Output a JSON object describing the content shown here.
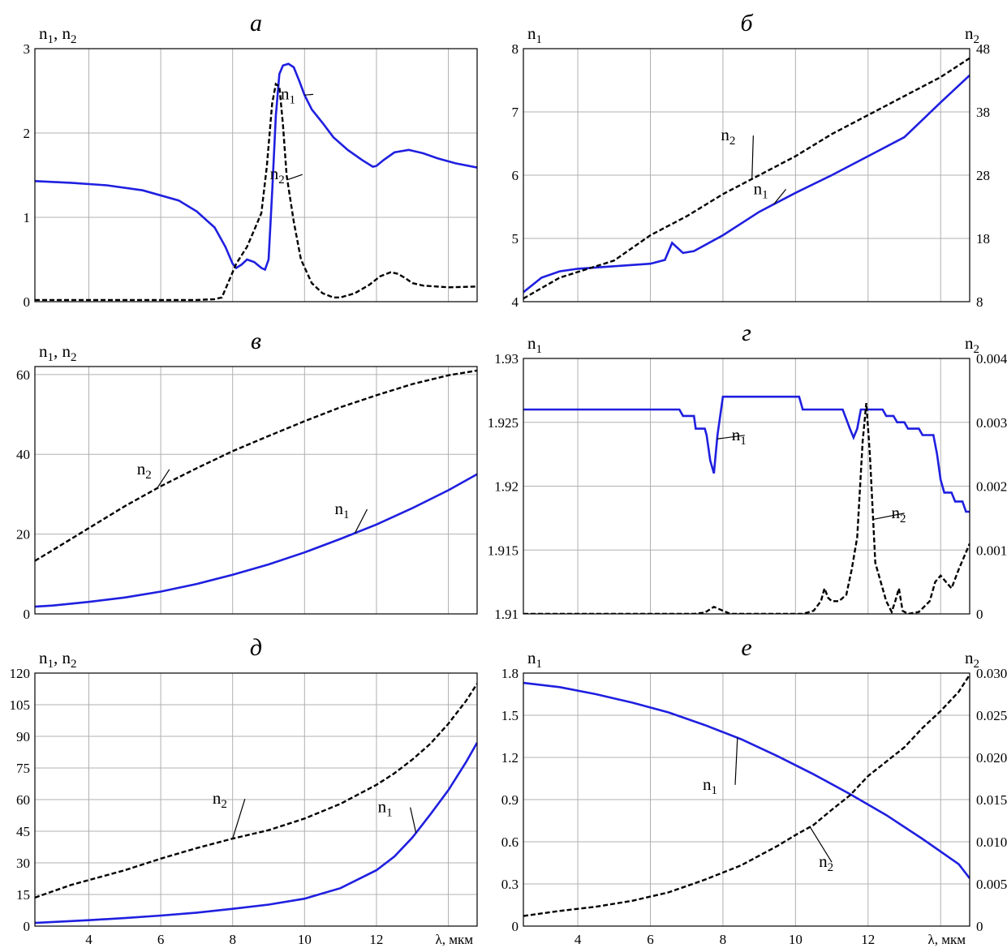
{
  "colors": {
    "n1": "#1f1fe0",
    "n2": "#000000",
    "grid": "#b0b0b0"
  },
  "chart_data": [
    {
      "type": "line",
      "title": "а",
      "ylabel": "n1, n2",
      "xlim": [
        2.5,
        14.8
      ],
      "xticks": [
        4,
        6,
        8,
        10,
        12
      ],
      "xtick_labels_shown": false,
      "ylim": [
        0,
        3
      ],
      "yticks": [
        0,
        1,
        2,
        3
      ],
      "grid": true,
      "series": [
        {
          "name": "n1",
          "axis": "left",
          "style": "solid",
          "x": [
            2.5,
            3.5,
            4.5,
            5.5,
            6.5,
            7.0,
            7.5,
            7.8,
            8.0,
            8.1,
            8.25,
            8.4,
            8.6,
            8.8,
            8.9,
            9.0,
            9.1,
            9.2,
            9.3,
            9.4,
            9.55,
            9.7,
            9.85,
            10.0,
            10.2,
            10.5,
            10.8,
            11.2,
            11.6,
            11.9,
            12.0,
            12.2,
            12.5,
            12.9,
            13.3,
            13.7,
            14.2,
            14.8
          ],
          "y": [
            1.43,
            1.41,
            1.38,
            1.32,
            1.2,
            1.07,
            0.88,
            0.65,
            0.45,
            0.4,
            0.44,
            0.5,
            0.47,
            0.4,
            0.38,
            0.5,
            1.3,
            2.2,
            2.7,
            2.8,
            2.82,
            2.78,
            2.62,
            2.45,
            2.28,
            2.12,
            1.95,
            1.8,
            1.68,
            1.6,
            1.61,
            1.68,
            1.77,
            1.8,
            1.76,
            1.7,
            1.64,
            1.59
          ]
        },
        {
          "name": "n2",
          "axis": "left",
          "style": "dashed",
          "x": [
            2.5,
            5.0,
            7.0,
            7.5,
            7.7,
            7.9,
            8.1,
            8.4,
            8.6,
            8.8,
            8.95,
            9.1,
            9.2,
            9.3,
            9.4,
            9.5,
            9.7,
            9.9,
            10.2,
            10.5,
            10.8,
            11.0,
            11.4,
            11.8,
            12.1,
            12.4,
            12.6,
            12.8,
            13.0,
            13.3,
            14.0,
            14.8
          ],
          "y": [
            0.02,
            0.02,
            0.02,
            0.03,
            0.05,
            0.25,
            0.45,
            0.65,
            0.85,
            1.05,
            1.6,
            2.35,
            2.58,
            2.55,
            2.1,
            1.5,
            0.95,
            0.5,
            0.22,
            0.1,
            0.05,
            0.05,
            0.1,
            0.2,
            0.3,
            0.35,
            0.33,
            0.28,
            0.22,
            0.19,
            0.17,
            0.18
          ]
        }
      ],
      "annotations": [
        {
          "text": "n1",
          "series": "n1",
          "at": [
            9.7,
            2.4
          ]
        },
        {
          "text": "n2",
          "series": "n2",
          "at": [
            9.4,
            1.45
          ]
        }
      ]
    },
    {
      "type": "line",
      "title": "б",
      "ylabel": "n1",
      "y2label": "n2",
      "xlim": [
        2.5,
        14.8
      ],
      "xticks": [
        4,
        6,
        8,
        10,
        12
      ],
      "xtick_labels_shown": false,
      "ylim": [
        4,
        8
      ],
      "yticks": [
        4,
        5,
        6,
        7,
        8
      ],
      "y2lim": [
        8,
        48
      ],
      "y2ticks": [
        8,
        18,
        28,
        38,
        48
      ],
      "grid": true,
      "series": [
        {
          "name": "n1",
          "axis": "left",
          "style": "solid",
          "x": [
            2.5,
            3.0,
            3.5,
            4.0,
            5.0,
            6.0,
            6.4,
            6.6,
            6.9,
            7.2,
            8.0,
            9.0,
            10.0,
            11.0,
            12.0,
            13.0,
            14.0,
            14.8
          ],
          "y": [
            4.15,
            4.38,
            4.48,
            4.52,
            4.56,
            4.6,
            4.66,
            4.93,
            4.77,
            4.8,
            5.05,
            5.42,
            5.72,
            6.0,
            6.3,
            6.6,
            7.15,
            7.58
          ]
        },
        {
          "name": "n2",
          "axis": "right",
          "style": "dashed",
          "x": [
            2.5,
            3.5,
            5.0,
            6.0,
            7.0,
            8.0,
            9.0,
            10.0,
            11.0,
            12.0,
            13.0,
            14.0,
            14.8
          ],
          "y": [
            8.5,
            11.8,
            14.5,
            18.5,
            21.5,
            25,
            28,
            31,
            34.5,
            37.5,
            40.5,
            43.5,
            46.5
          ]
        }
      ],
      "annotations": [
        {
          "text": "n2",
          "series": "n2",
          "at": [
            8.3,
            6.55
          ]
        },
        {
          "text": "n1",
          "series": "n1",
          "at": [
            9.2,
            5.7
          ]
        }
      ]
    },
    {
      "type": "line",
      "title": "в",
      "ylabel": "n1, n2",
      "xlim": [
        2.5,
        14.8
      ],
      "xticks": [
        4,
        6,
        8,
        10,
        12
      ],
      "xtick_labels_shown": false,
      "ylim": [
        0,
        62
      ],
      "yticks": [
        0,
        20,
        40,
        60
      ],
      "grid": true,
      "series": [
        {
          "name": "n1",
          "axis": "left",
          "style": "solid",
          "x": [
            2.5,
            3.0,
            4.0,
            5.0,
            6.0,
            7.0,
            8.0,
            9.0,
            10.0,
            11.0,
            12.0,
            13.0,
            14.0,
            14.8
          ],
          "y": [
            1.8,
            2.1,
            3.0,
            4.1,
            5.6,
            7.5,
            9.8,
            12.4,
            15.4,
            18.8,
            22.4,
            26.5,
            31,
            35
          ]
        },
        {
          "name": "n2",
          "axis": "left",
          "style": "dashed",
          "x": [
            2.5,
            3.0,
            4.0,
            5.0,
            6.0,
            7.0,
            8.0,
            9.0,
            10.0,
            11.0,
            12.0,
            13.0,
            14.0,
            14.8
          ],
          "y": [
            13.3,
            16,
            21.5,
            27,
            32,
            36.5,
            40.8,
            44.6,
            48.3,
            51.8,
            54.8,
            57.6,
            59.8,
            61
          ]
        }
      ],
      "annotations": [
        {
          "text": "n2",
          "series": "n2",
          "at": [
            5.7,
            35
          ]
        },
        {
          "text": "n1",
          "series": "n1",
          "at": [
            11.2,
            25
          ]
        }
      ]
    },
    {
      "type": "line",
      "title": "г",
      "ylabel": "n1",
      "y2label": "n2",
      "xlim": [
        2.5,
        14.8
      ],
      "xticks": [
        4,
        6,
        8,
        10,
        12
      ],
      "xtick_labels_shown": false,
      "ylim": [
        1.91,
        1.93
      ],
      "yticks": [
        1.91,
        1.915,
        1.92,
        1.925,
        1.93
      ],
      "ytick_labels": [
        "1.91",
        "1.915",
        "1.92",
        "1.925",
        "1.93"
      ],
      "y2lim": [
        0,
        0.004
      ],
      "y2ticks": [
        0,
        0.001,
        0.002,
        0.003,
        0.004
      ],
      "y2tick_labels": [
        "0",
        "0.001",
        "0.002",
        "0.003",
        "0.004"
      ],
      "grid": true,
      "series": [
        {
          "name": "n1",
          "axis": "left",
          "style": "solid",
          "x": [
            2.5,
            6.8,
            6.9,
            7.2,
            7.25,
            7.5,
            7.55,
            7.65,
            7.75,
            7.85,
            8.0,
            8.1,
            10.1,
            10.2,
            11.3,
            11.5,
            11.6,
            11.7,
            11.8,
            11.9,
            12.4,
            12.5,
            12.7,
            12.8,
            13.0,
            13.1,
            13.4,
            13.5,
            13.8,
            13.9,
            14.0,
            14.1,
            14.3,
            14.4,
            14.6,
            14.7,
            14.8
          ],
          "y": [
            1.926,
            1.926,
            1.9255,
            1.9255,
            1.9245,
            1.9245,
            1.924,
            1.922,
            1.921,
            1.924,
            1.927,
            1.927,
            1.927,
            1.926,
            1.926,
            1.9245,
            1.9238,
            1.9245,
            1.926,
            1.926,
            1.926,
            1.9255,
            1.9255,
            1.925,
            1.925,
            1.9245,
            1.9245,
            1.924,
            1.924,
            1.9225,
            1.9205,
            1.9195,
            1.9195,
            1.9188,
            1.9188,
            1.918,
            1.918
          ]
        },
        {
          "name": "n2",
          "axis": "right",
          "style": "dashed",
          "x": [
            2.5,
            7.2,
            7.5,
            7.75,
            8.0,
            8.2,
            10.2,
            10.5,
            10.7,
            10.8,
            10.9,
            11.0,
            11.2,
            11.4,
            11.55,
            11.7,
            11.85,
            11.95,
            12.05,
            12.2,
            12.35,
            12.5,
            12.65,
            12.75,
            12.85,
            12.95,
            13.1,
            13.4,
            13.7,
            13.85,
            14.0,
            14.3,
            14.5,
            14.8
          ],
          "y": [
            0,
            0,
            2e-05,
            0.00011,
            5e-05,
            0,
            0,
            5e-05,
            0.0002,
            0.0004,
            0.00025,
            0.0002,
            0.0002,
            0.0003,
            0.0007,
            0.0012,
            0.0027,
            0.0033,
            0.0025,
            0.0008,
            0.0005,
            0.0002,
            3e-05,
            0.0002,
            0.0004,
            5e-05,
            0,
            3e-05,
            0.0002,
            0.0005,
            0.0006,
            0.0004,
            0.0007,
            0.0011
          ]
        }
      ],
      "annotations": [
        {
          "text": "n1",
          "series": "n1",
          "at": [
            8.6,
            1.9236
          ]
        },
        {
          "text": "n2",
          "series": "n2",
          "at": [
            13.0,
            1.9175
          ]
        }
      ]
    },
    {
      "type": "line",
      "title": "д",
      "ylabel": "n1, n2",
      "xlabel": "λ, мкм",
      "xlim": [
        2.5,
        14.8
      ],
      "xticks": [
        4,
        6,
        8,
        10,
        12
      ],
      "ylim": [
        0,
        120
      ],
      "yticks": [
        0,
        15,
        30,
        45,
        60,
        75,
        90,
        105,
        120
      ],
      "grid": true,
      "series": [
        {
          "name": "n1",
          "axis": "left",
          "style": "solid",
          "x": [
            2.5,
            4.0,
            5.0,
            6.0,
            7.0,
            8.0,
            9.0,
            10.0,
            11.0,
            12.0,
            12.5,
            13.0,
            13.5,
            14.0,
            14.5,
            14.8
          ],
          "y": [
            1.5,
            2.8,
            3.8,
            5.0,
            6.4,
            8.2,
            10.2,
            13,
            18,
            26.5,
            33,
            42,
            53,
            64.5,
            78,
            87
          ]
        },
        {
          "name": "n2",
          "axis": "left",
          "style": "dashed",
          "x": [
            2.5,
            3.5,
            5.0,
            6.0,
            7.0,
            8.0,
            9.0,
            10.0,
            11.0,
            12.0,
            12.5,
            13.0,
            13.5,
            14.0,
            14.5,
            14.8
          ],
          "y": [
            13.5,
            19.5,
            26.5,
            32,
            37,
            41.5,
            45.5,
            51,
            58,
            67,
            72.5,
            79,
            86.5,
            96,
            107,
            115
          ]
        }
      ],
      "annotations": [
        {
          "text": "n2",
          "series": "n2",
          "at": [
            7.8,
            58
          ]
        },
        {
          "text": "n1",
          "series": "n1",
          "at": [
            12.4,
            54
          ]
        }
      ]
    },
    {
      "type": "line",
      "title": "е",
      "ylabel": "n1",
      "y2label": "n2",
      "xlabel": "λ, мкм",
      "xlim": [
        2.5,
        14.8
      ],
      "xticks": [
        4,
        6,
        8,
        10,
        12
      ],
      "ylim": [
        0,
        1.8
      ],
      "yticks": [
        0,
        0.3,
        0.6,
        0.9,
        1.2,
        1.5,
        1.8
      ],
      "y2lim": [
        0,
        0.03
      ],
      "y2ticks": [
        0,
        0.005,
        0.01,
        0.015,
        0.02,
        0.025,
        0.03
      ],
      "y2tick_labels": [
        "0",
        "0.005",
        "0.010",
        "0.015",
        "0.020",
        "0.025",
        "0.030"
      ],
      "grid": true,
      "series": [
        {
          "name": "n1",
          "axis": "left",
          "style": "solid",
          "x": [
            2.5,
            3.5,
            4.5,
            5.5,
            6.5,
            7.5,
            8.5,
            9.5,
            10.5,
            11.5,
            12.5,
            13.5,
            14.5,
            14.8
          ],
          "y": [
            1.73,
            1.7,
            1.65,
            1.59,
            1.52,
            1.43,
            1.33,
            1.21,
            1.08,
            0.94,
            0.79,
            0.62,
            0.44,
            0.34
          ]
        },
        {
          "name": "n2",
          "axis": "right",
          "style": "dashed",
          "x": [
            2.5,
            3.5,
            4.5,
            5.5,
            6.5,
            7.5,
            8.5,
            9.5,
            10.0,
            10.5,
            11.0,
            11.5,
            12.0,
            12.5,
            13.0,
            13.5,
            14.0,
            14.5,
            14.8
          ],
          "y": [
            0.0012,
            0.0018,
            0.0023,
            0.003,
            0.004,
            0.0055,
            0.0072,
            0.0095,
            0.0108,
            0.012,
            0.0138,
            0.0155,
            0.0178,
            0.0195,
            0.0212,
            0.0235,
            0.0255,
            0.0278,
            0.0298
          ]
        }
      ],
      "annotations": [
        {
          "text": "n1",
          "series": "n1",
          "at": [
            7.8,
            0.97
          ]
        },
        {
          "text": "n2",
          "series": "n2",
          "at": [
            11.0,
            0.42
          ]
        }
      ]
    }
  ]
}
